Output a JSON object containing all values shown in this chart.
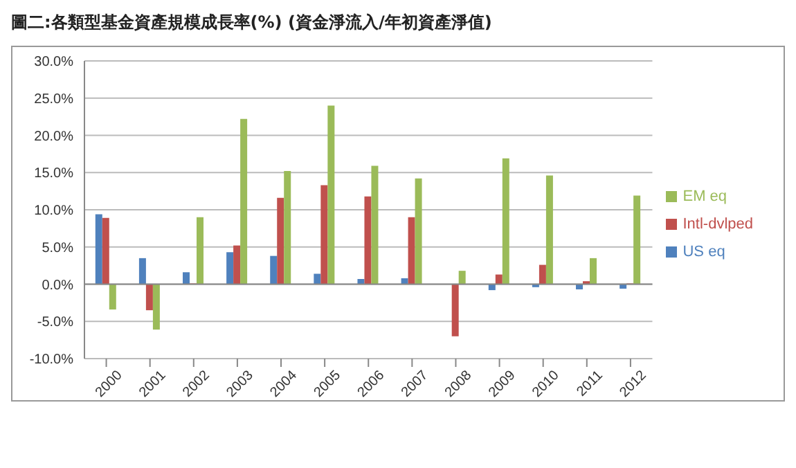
{
  "chart_data": {
    "type": "bar",
    "title": "圖二:各類型基金資產規模成長率(%) (資金淨流入/年初資產淨值)",
    "categories": [
      "2000",
      "2001",
      "2002",
      "2003",
      "2004",
      "2005",
      "2006",
      "2007",
      "2008",
      "2009",
      "2010",
      "2011",
      "2012"
    ],
    "series": [
      {
        "name": "US eq",
        "color": "#4f81bd",
        "values": [
          9.4,
          3.5,
          1.6,
          4.3,
          3.8,
          1.4,
          0.7,
          0.8,
          0.0,
          -0.8,
          -0.4,
          -0.7,
          -0.6
        ]
      },
      {
        "name": "Intl-dvlped",
        "color": "#c0504d",
        "values": [
          8.9,
          -3.5,
          0.1,
          5.2,
          11.6,
          13.3,
          11.8,
          9.0,
          -7.0,
          1.3,
          2.6,
          0.4,
          0.1
        ]
      },
      {
        "name": "EM eq",
        "color": "#9bbb59",
        "values": [
          -3.4,
          -6.1,
          9.0,
          22.2,
          15.2,
          24.0,
          15.9,
          14.2,
          1.8,
          16.9,
          14.6,
          3.5,
          11.9
        ]
      }
    ],
    "ylim": [
      -10,
      30
    ],
    "yticks": [
      {
        "value": -10,
        "label": "-10.0%"
      },
      {
        "value": -5,
        "label": "-5.0%"
      },
      {
        "value": 0,
        "label": "0.0%"
      },
      {
        "value": 5,
        "label": "5.0%"
      },
      {
        "value": 10,
        "label": "10.0%"
      },
      {
        "value": 15,
        "label": "15.0%"
      },
      {
        "value": 20,
        "label": "20.0%"
      },
      {
        "value": 25,
        "label": "25.0%"
      },
      {
        "value": 30,
        "label": "30.0%"
      }
    ],
    "grid": "y",
    "legend": "right"
  }
}
